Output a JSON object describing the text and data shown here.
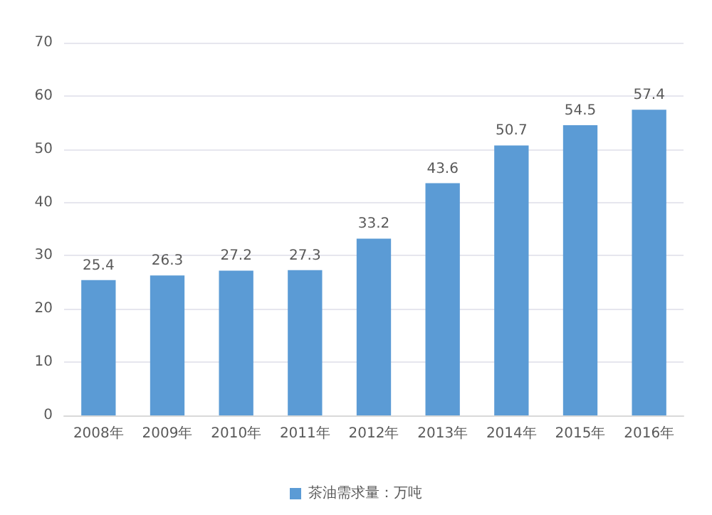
{
  "chart_data": {
    "type": "bar",
    "categories": [
      "2008年",
      "2009年",
      "2010年",
      "2011年",
      "2012年",
      "2013年",
      "2014年",
      "2015年",
      "2016年"
    ],
    "series": [
      {
        "name": "茶油需求量：万吨",
        "color": "#5b9bd5",
        "values": [
          25.4,
          26.3,
          27.2,
          27.3,
          33.2,
          43.6,
          50.7,
          54.5,
          57.4
        ]
      }
    ],
    "ylim": [
      0,
      70
    ],
    "yticks": [
      0,
      10,
      20,
      30,
      40,
      50,
      60,
      70
    ],
    "grid": "y",
    "legend": "bottom",
    "data_labels": true
  }
}
